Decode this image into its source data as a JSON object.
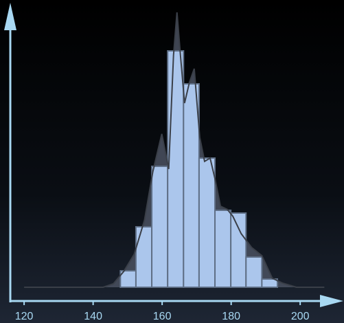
{
  "chart_data": {
    "type": "histogram",
    "bins": [
      147.9,
      152.4,
      157.0,
      161.6,
      166.2,
      170.7,
      175.3,
      179.9,
      184.3,
      188.9,
      193.4
    ],
    "values": [
      6,
      22,
      44,
      86,
      74,
      47,
      28,
      27,
      11,
      3
    ],
    "color": "#abc6ec",
    "density": {
      "x": [
        120,
        142.9,
        145.9,
        148.9,
        151.9,
        154.9,
        157.3,
        159.9,
        161.9,
        163.3,
        164.3,
        165.3,
        166.5,
        167.9,
        169.3,
        170.9,
        172.3,
        173.9,
        175.3,
        176.9,
        178.9,
        180.5,
        182.9,
        185.9,
        188.9,
        191.9,
        194.9,
        198.9,
        207
      ],
      "values": [
        0,
        0,
        1.3,
        5.8,
        12,
        24.5,
        42,
        55.8,
        43,
        84.5,
        100,
        84.5,
        67,
        74.5,
        79.5,
        54.5,
        45.8,
        47,
        39.5,
        29.5,
        28.3,
        25.8,
        19.5,
        14.5,
        11.5,
        3.3,
        1.5,
        0,
        0
      ],
      "color": "#4a5160"
    },
    "xlim": [
      116,
      212.5
    ],
    "xticks": [
      120,
      140,
      160,
      180,
      200
    ],
    "ylim": [
      0,
      100
    ],
    "axis_color": "#a8d8f2"
  }
}
